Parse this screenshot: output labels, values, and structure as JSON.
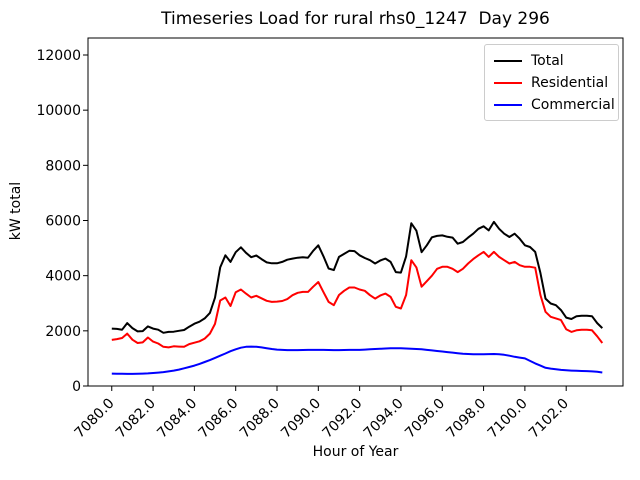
{
  "figure": {
    "background": "#ffffff",
    "text_color": "#000000"
  },
  "chart_data": {
    "type": "line",
    "title": "Timeseries Load for rural rhs0_1247  Day 296",
    "xlabel": "Hour of Year",
    "ylabel": "kW total",
    "xlim": [
      7078.85,
      7104.75
    ],
    "ylim": [
      0,
      12616
    ],
    "xticks": [
      7080,
      7082,
      7084,
      7086,
      7088,
      7090,
      7092,
      7094,
      7096,
      7098,
      7100,
      7102
    ],
    "xtick_format_decimals": 1,
    "yticks": [
      0,
      2000,
      4000,
      6000,
      8000,
      10000,
      12000
    ],
    "grid": false,
    "legend_position": "upper right",
    "x_start": 7080.0,
    "x_step": 0.25,
    "series": [
      {
        "name": "Total",
        "color": "#000000",
        "values": [
          2080,
          2070,
          2040,
          2280,
          2100,
          1980,
          1990,
          2160,
          2080,
          2040,
          1930,
          1960,
          1970,
          2000,
          2030,
          2150,
          2260,
          2330,
          2450,
          2650,
          3200,
          4300,
          4740,
          4500,
          4850,
          5030,
          4830,
          4670,
          4730,
          4600,
          4480,
          4450,
          4450,
          4500,
          4580,
          4620,
          4650,
          4670,
          4650,
          4900,
          5100,
          4700,
          4260,
          4200,
          4680,
          4790,
          4900,
          4890,
          4740,
          4640,
          4560,
          4440,
          4550,
          4620,
          4500,
          4130,
          4110,
          4700,
          5900,
          5630,
          4850,
          5100,
          5390,
          5440,
          5460,
          5410,
          5380,
          5160,
          5220,
          5380,
          5520,
          5700,
          5790,
          5640,
          5950,
          5700,
          5520,
          5400,
          5520,
          5340,
          5100,
          5040,
          4860,
          4100,
          3170,
          2990,
          2930,
          2750,
          2480,
          2430,
          2530,
          2550,
          2550,
          2530,
          2280,
          2100
        ]
      },
      {
        "name": "Residential",
        "color": "#ff0000",
        "values": [
          1670,
          1700,
          1740,
          1900,
          1680,
          1560,
          1580,
          1760,
          1610,
          1540,
          1420,
          1400,
          1440,
          1430,
          1420,
          1520,
          1570,
          1620,
          1720,
          1900,
          2250,
          3100,
          3210,
          2900,
          3400,
          3500,
          3350,
          3210,
          3270,
          3180,
          3090,
          3050,
          3060,
          3080,
          3150,
          3290,
          3380,
          3410,
          3410,
          3600,
          3770,
          3400,
          3050,
          2930,
          3300,
          3450,
          3570,
          3570,
          3500,
          3450,
          3290,
          3170,
          3280,
          3350,
          3230,
          2870,
          2810,
          3300,
          4560,
          4300,
          3600,
          3800,
          4000,
          4250,
          4320,
          4320,
          4250,
          4130,
          4250,
          4440,
          4600,
          4740,
          4860,
          4680,
          4860,
          4680,
          4560,
          4440,
          4500,
          4380,
          4320,
          4320,
          4290,
          3300,
          2690,
          2510,
          2450,
          2390,
          2060,
          1960,
          2020,
          2040,
          2040,
          2020,
          1800,
          1560
        ]
      },
      {
        "name": "Commercial",
        "color": "#0000ff",
        "values": [
          450,
          445,
          442,
          440,
          440,
          442,
          448,
          455,
          470,
          485,
          505,
          530,
          560,
          595,
          640,
          690,
          740,
          800,
          870,
          940,
          1020,
          1100,
          1180,
          1260,
          1330,
          1390,
          1420,
          1430,
          1420,
          1400,
          1370,
          1340,
          1320,
          1310,
          1300,
          1300,
          1300,
          1305,
          1310,
          1310,
          1310,
          1310,
          1305,
          1300,
          1300,
          1305,
          1310,
          1310,
          1310,
          1320,
          1330,
          1340,
          1350,
          1360,
          1370,
          1370,
          1370,
          1360,
          1350,
          1340,
          1330,
          1310,
          1290,
          1270,
          1250,
          1230,
          1210,
          1190,
          1170,
          1160,
          1150,
          1150,
          1150,
          1155,
          1160,
          1150,
          1130,
          1100,
          1060,
          1030,
          1000,
          910,
          820,
          740,
          660,
          630,
          610,
          585,
          570,
          560,
          550,
          545,
          540,
          530,
          515,
          490
        ]
      }
    ]
  }
}
